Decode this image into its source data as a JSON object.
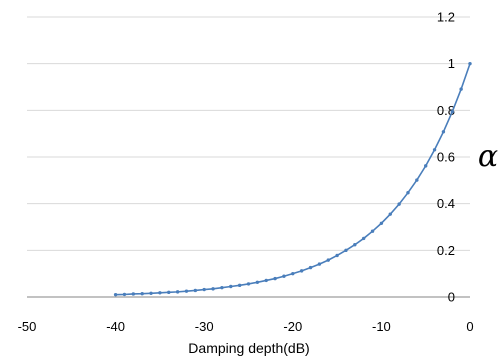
{
  "chart_data": {
    "type": "line",
    "title": "",
    "xlabel": "Damping depth(dB)",
    "ylabel": "α",
    "xlim": [
      -50,
      0
    ],
    "ylim": [
      0,
      1.2
    ],
    "x_ticks": [
      "-50",
      "-40",
      "-30",
      "-20",
      "-10",
      "0"
    ],
    "y_ticks": [
      "0",
      "0.2",
      "0.4",
      "0.6",
      "0.8",
      "1",
      "1.2"
    ],
    "grid": "horizontal",
    "y_axis_position": "right",
    "legend": "none",
    "series": [
      {
        "color": "#4a7ebb",
        "marker": "dot",
        "x": [
          -40,
          -39,
          -38,
          -37,
          -36,
          -35,
          -34,
          -33,
          -32,
          -31,
          -30,
          -29,
          -28,
          -27,
          -26,
          -25,
          -24,
          -23,
          -22,
          -21,
          -20,
          -19,
          -18,
          -17,
          -16,
          -15,
          -14,
          -13,
          -12,
          -11,
          -10,
          -9,
          -8,
          -7,
          -6,
          -5,
          -4,
          -3,
          -2,
          -1,
          0
        ],
        "y": [
          0.01,
          0.011,
          0.013,
          0.014,
          0.016,
          0.018,
          0.02,
          0.022,
          0.025,
          0.028,
          0.032,
          0.035,
          0.04,
          0.045,
          0.05,
          0.056,
          0.063,
          0.071,
          0.079,
          0.089,
          0.1,
          0.112,
          0.126,
          0.141,
          0.158,
          0.178,
          0.2,
          0.224,
          0.251,
          0.282,
          0.316,
          0.355,
          0.398,
          0.447,
          0.501,
          0.562,
          0.631,
          0.708,
          0.794,
          0.891,
          1.0
        ]
      }
    ]
  }
}
